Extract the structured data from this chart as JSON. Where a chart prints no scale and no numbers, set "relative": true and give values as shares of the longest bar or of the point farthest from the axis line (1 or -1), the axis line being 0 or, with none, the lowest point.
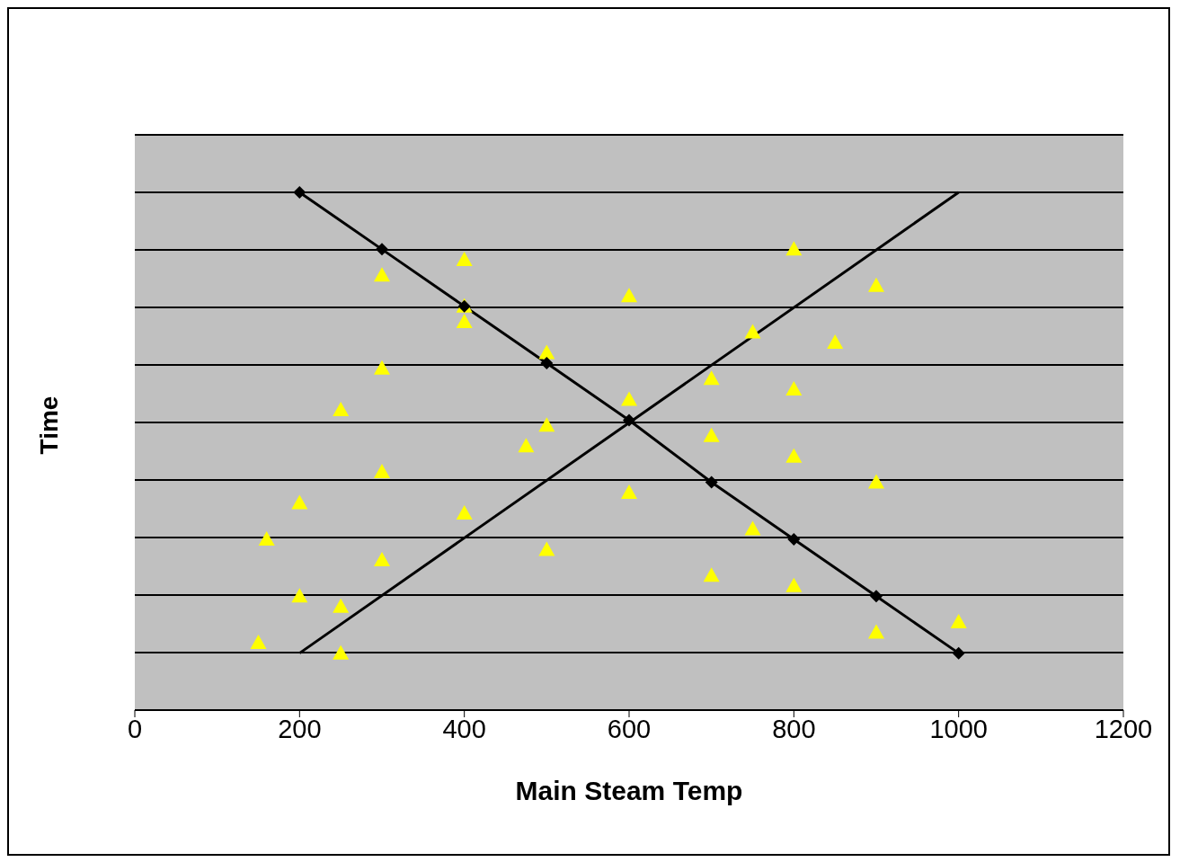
{
  "chart_data": {
    "type": "scatter",
    "xlabel": "Main Steam Temp",
    "ylabel": "Time",
    "relative": true,
    "xlim": [
      0,
      1200
    ],
    "xticks": [
      0,
      200,
      400,
      600,
      800,
      1000,
      1200
    ],
    "grid": "y",
    "series": [
      {
        "type": "line",
        "color": "#000000",
        "marker": "diamond",
        "x": [
          200,
          300,
          400,
          500,
          600,
          700,
          800,
          900,
          1000
        ],
        "values": [
          1,
          0.89,
          0.78,
          0.67,
          0.56,
          0.44,
          0.33,
          0.22,
          0.11
        ]
      },
      {
        "type": "line",
        "color": "#000000",
        "marker": "none",
        "x": [
          200,
          1000
        ],
        "values": [
          0.11,
          1
        ]
      },
      {
        "color": "#ffff00",
        "marker": "triangle",
        "x": [
          150,
          160,
          200,
          200,
          250,
          250,
          250,
          300,
          300,
          300,
          300,
          400,
          400,
          400,
          400,
          475,
          500,
          500,
          500,
          600,
          600,
          600,
          700,
          700,
          700,
          750,
          750,
          800,
          800,
          800,
          800,
          850,
          900,
          900,
          900,
          1000
        ],
        "values": [
          0.13,
          0.33,
          0.4,
          0.22,
          0.58,
          0.2,
          0.11,
          0.84,
          0.66,
          0.46,
          0.29,
          0.87,
          0.78,
          0.75,
          0.38,
          0.51,
          0.69,
          0.55,
          0.31,
          0.8,
          0.6,
          0.42,
          0.64,
          0.53,
          0.26,
          0.73,
          0.35,
          0.89,
          0.62,
          0.49,
          0.24,
          0.71,
          0.82,
          0.44,
          0.15,
          0.17
        ]
      }
    ]
  }
}
